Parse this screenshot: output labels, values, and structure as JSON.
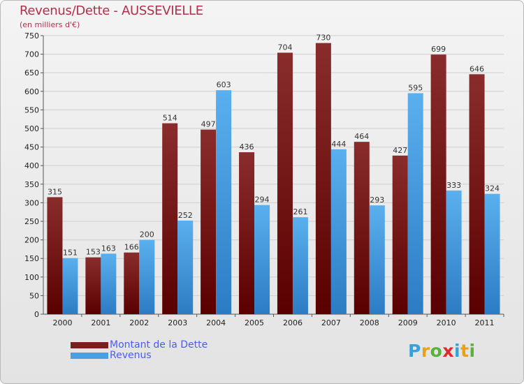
{
  "title": "Revenus/Dette - AUSSEVIELLE",
  "subtitle": "(en milliers d'€)",
  "logo": {
    "text": "Proxiti",
    "letters": [
      {
        "ch": "P",
        "color": "#3aa0d8"
      },
      {
        "ch": "r",
        "color": "#e8a21a"
      },
      {
        "ch": "o",
        "color": "#58b23c"
      },
      {
        "ch": "x",
        "color": "#e0282e"
      },
      {
        "ch": "i",
        "color": "#3aa0d8"
      },
      {
        "ch": "t",
        "color": "#e8a21a"
      },
      {
        "ch": "i",
        "color": "#58b23c"
      }
    ]
  },
  "colors": {
    "dette": "#7a1e1e",
    "revenus": "#4a9fe3",
    "grid": "#cfcfcf",
    "axis": "#555555"
  },
  "chart_data": {
    "type": "bar",
    "categories": [
      "2000",
      "2001",
      "2002",
      "2003",
      "2004",
      "2005",
      "2006",
      "2007",
      "2008",
      "2009",
      "2010",
      "2011"
    ],
    "series": [
      {
        "name": "Montant de la Dette",
        "values": [
          315,
          153,
          166,
          514,
          497,
          436,
          704,
          730,
          464,
          427,
          699,
          646
        ]
      },
      {
        "name": "Revenus",
        "values": [
          151,
          163,
          200,
          252,
          603,
          294,
          261,
          444,
          293,
          595,
          333,
          324
        ]
      }
    ],
    "title": "Revenus/Dette - AUSSEVIELLE",
    "ylabel": "(en milliers d'€)",
    "ylim": [
      0,
      750
    ],
    "yticks": [
      0,
      50,
      100,
      150,
      200,
      250,
      300,
      350,
      400,
      450,
      500,
      550,
      600,
      650,
      700,
      750
    ],
    "grid": true,
    "legend_position": "bottom-left"
  }
}
